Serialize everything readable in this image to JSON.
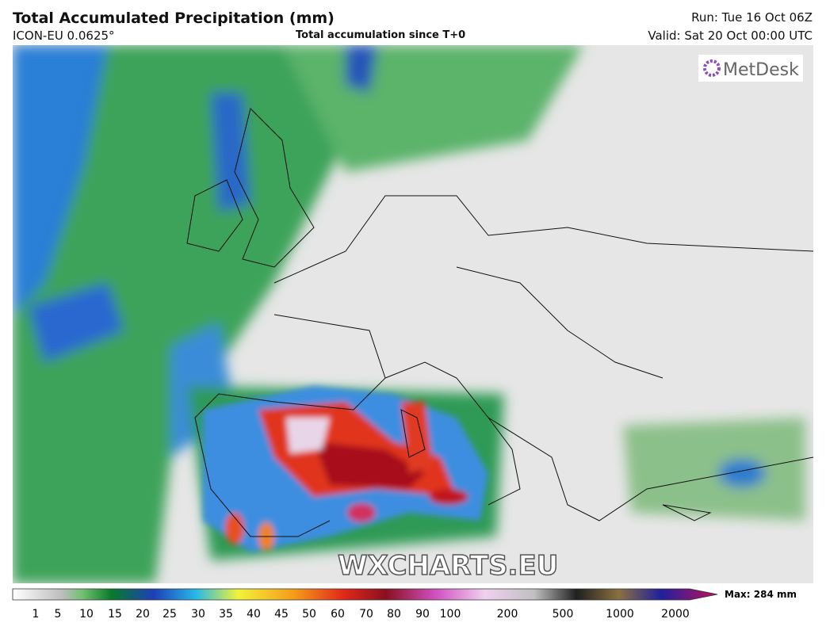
{
  "header": {
    "title": "Total Accumulated Precipitation (mm)",
    "model": "ICON-EU 0.0625°",
    "subtitle": "Total accumulation since T+0",
    "run": "Run: Tue 16 Oct 06Z",
    "valid": "Valid: Sat 20 Oct 00:00 UTC"
  },
  "logo": "MetDesk",
  "watermark": "WXCHARTS.EU",
  "colorbar": {
    "ticks": [
      1,
      5,
      10,
      15,
      20,
      25,
      30,
      35,
      40,
      45,
      50,
      60,
      70,
      80,
      90,
      100,
      200,
      500,
      1000,
      2000
    ],
    "max": "Max: 284 mm"
  }
}
